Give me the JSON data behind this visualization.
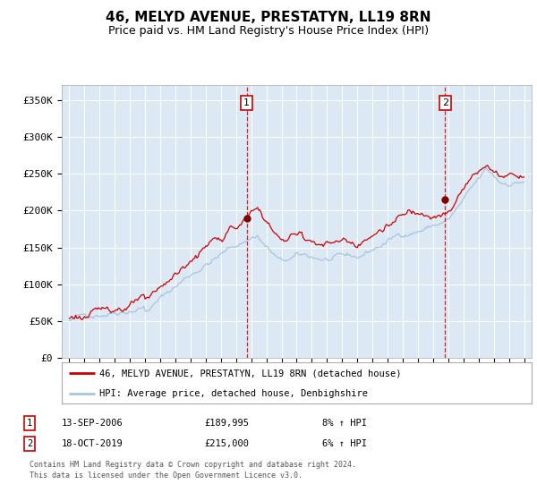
{
  "title": "46, MELYD AVENUE, PRESTATYN, LL19 8RN",
  "subtitle": "Price paid vs. HM Land Registry's House Price Index (HPI)",
  "title_fontsize": 11,
  "subtitle_fontsize": 9,
  "background_color": "#ffffff",
  "plot_bg_color": "#dce9f5",
  "hpi_color": "#a8c4e0",
  "price_color": "#cc0000",
  "sale1_date_num": 2006.71,
  "sale1_price": 189995,
  "sale1_label": "1",
  "sale1_date_str": "13-SEP-2006",
  "sale1_price_str": "£189,995",
  "sale1_pct": "8% ↑ HPI",
  "sale2_date_num": 2019.79,
  "sale2_price": 215000,
  "sale2_label": "2",
  "sale2_date_str": "18-OCT-2019",
  "sale2_price_str": "£215,000",
  "sale2_pct": "6% ↑ HPI",
  "ylim": [
    0,
    370000
  ],
  "xlim_start": 1994.5,
  "xlim_end": 2025.5,
  "yticks": [
    0,
    50000,
    100000,
    150000,
    200000,
    250000,
    300000,
    350000
  ],
  "ytick_labels": [
    "£0",
    "£50K",
    "£100K",
    "£150K",
    "£200K",
    "£250K",
    "£300K",
    "£350K"
  ],
  "xticks": [
    1995,
    1996,
    1997,
    1998,
    1999,
    2000,
    2001,
    2002,
    2003,
    2004,
    2005,
    2006,
    2007,
    2008,
    2009,
    2010,
    2011,
    2012,
    2013,
    2014,
    2015,
    2016,
    2017,
    2018,
    2019,
    2020,
    2021,
    2022,
    2023,
    2024,
    2025
  ],
  "legend_line1": "46, MELYD AVENUE, PRESTATYN, LL19 8RN (detached house)",
  "legend_line2": "HPI: Average price, detached house, Denbighshire",
  "footer": "Contains HM Land Registry data © Crown copyright and database right 2024.\nThis data is licensed under the Open Government Licence v3.0."
}
